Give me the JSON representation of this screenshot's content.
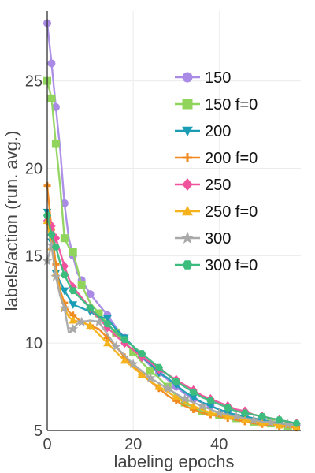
{
  "chart_data": {
    "type": "line",
    "xlabel": "labeling epochs",
    "ylabel": "labels/action (run. avg.)",
    "xlim": [
      0,
      59
    ],
    "ylim": [
      5,
      29
    ],
    "x_ticks": [
      0,
      20,
      40
    ],
    "y_ticks": [
      5,
      10,
      15,
      20,
      25
    ],
    "grid": true,
    "legend_position": "top-right",
    "series": [
      {
        "name": "150",
        "color": "#a98be6",
        "marker": "circle",
        "points": [
          [
            0,
            28.3
          ],
          [
            1,
            26.0
          ],
          [
            2,
            23.5
          ],
          [
            3,
            21.1
          ],
          [
            4,
            18.0
          ],
          [
            5,
            16.0
          ],
          [
            6,
            15.0
          ],
          [
            7,
            14.0
          ],
          [
            8,
            13.6
          ],
          [
            9,
            13.2
          ],
          [
            10,
            12.8
          ],
          [
            12,
            12.2
          ],
          [
            14,
            11.6
          ],
          [
            16,
            10.9
          ],
          [
            18,
            10.3
          ],
          [
            20,
            9.8
          ],
          [
            22,
            9.2
          ],
          [
            24,
            8.7
          ],
          [
            26,
            8.3
          ],
          [
            28,
            7.9
          ],
          [
            30,
            7.5
          ],
          [
            32,
            7.1
          ],
          [
            34,
            6.8
          ],
          [
            36,
            6.6
          ],
          [
            38,
            6.4
          ],
          [
            40,
            6.2
          ],
          [
            42,
            6.0
          ],
          [
            44,
            5.9
          ],
          [
            46,
            5.8
          ],
          [
            48,
            5.7
          ],
          [
            50,
            5.6
          ],
          [
            52,
            5.5
          ],
          [
            54,
            5.4
          ],
          [
            56,
            5.35
          ],
          [
            58,
            5.3
          ]
        ]
      },
      {
        "name": "150 f=0",
        "color": "#90d45c",
        "marker": "square",
        "points": [
          [
            0,
            25.0
          ],
          [
            1,
            24.0
          ],
          [
            2,
            21.4
          ],
          [
            3,
            19.0
          ],
          [
            4,
            16.0
          ],
          [
            5,
            15.5
          ],
          [
            6,
            15.2
          ],
          [
            7,
            14.3
          ],
          [
            8,
            13.3
          ],
          [
            10,
            12.3
          ],
          [
            12,
            11.7
          ],
          [
            14,
            11.1
          ],
          [
            16,
            10.6
          ],
          [
            18,
            10.0
          ],
          [
            20,
            9.5
          ],
          [
            22,
            8.9
          ],
          [
            24,
            8.4
          ],
          [
            26,
            8.0
          ],
          [
            28,
            7.5
          ],
          [
            30,
            7.0
          ],
          [
            32,
            6.6
          ],
          [
            34,
            6.3
          ],
          [
            36,
            6.1
          ],
          [
            38,
            6.0
          ],
          [
            40,
            5.9
          ],
          [
            42,
            5.8
          ],
          [
            44,
            5.7
          ],
          [
            46,
            5.6
          ],
          [
            48,
            5.5
          ],
          [
            50,
            5.45
          ],
          [
            52,
            5.4
          ],
          [
            54,
            5.3
          ],
          [
            56,
            5.25
          ],
          [
            58,
            5.2
          ]
        ]
      },
      {
        "name": "200",
        "color": "#1a9db4",
        "marker": "tri-down",
        "points": [
          [
            0,
            17.5
          ],
          [
            1,
            15.8
          ],
          [
            2,
            14.0
          ],
          [
            3,
            13.5
          ],
          [
            4,
            13.0
          ],
          [
            5,
            12.6
          ],
          [
            6,
            12.2
          ],
          [
            8,
            12.0
          ],
          [
            10,
            11.8
          ],
          [
            12,
            11.5
          ],
          [
            14,
            11.4
          ],
          [
            16,
            10.8
          ],
          [
            18,
            10.3
          ],
          [
            20,
            9.8
          ],
          [
            22,
            9.2
          ],
          [
            24,
            8.8
          ],
          [
            26,
            8.3
          ],
          [
            28,
            8.0
          ],
          [
            30,
            7.6
          ],
          [
            32,
            7.2
          ],
          [
            34,
            6.9
          ],
          [
            36,
            6.6
          ],
          [
            38,
            6.4
          ],
          [
            40,
            6.2
          ],
          [
            42,
            6.0
          ],
          [
            44,
            5.9
          ],
          [
            46,
            5.8
          ],
          [
            48,
            5.7
          ],
          [
            50,
            5.6
          ],
          [
            52,
            5.5
          ],
          [
            54,
            5.4
          ],
          [
            56,
            5.3
          ],
          [
            58,
            5.25
          ]
        ]
      },
      {
        "name": "200 f=0",
        "color": "#f08a1e",
        "marker": "plus",
        "points": [
          [
            0,
            19.0
          ],
          [
            1,
            16.5
          ],
          [
            2,
            14.5
          ],
          [
            3,
            13.0
          ],
          [
            4,
            12.3
          ],
          [
            5,
            11.8
          ],
          [
            6,
            11.6
          ],
          [
            8,
            11.2
          ],
          [
            10,
            11.0
          ],
          [
            12,
            10.8
          ],
          [
            14,
            10.3
          ],
          [
            16,
            9.8
          ],
          [
            18,
            9.2
          ],
          [
            20,
            8.7
          ],
          [
            22,
            8.2
          ],
          [
            24,
            7.8
          ],
          [
            26,
            7.4
          ],
          [
            28,
            7.0
          ],
          [
            30,
            6.7
          ],
          [
            32,
            6.4
          ],
          [
            34,
            6.2
          ],
          [
            36,
            6.0
          ],
          [
            38,
            5.9
          ],
          [
            40,
            5.8
          ],
          [
            42,
            5.7
          ],
          [
            44,
            5.6
          ],
          [
            46,
            5.5
          ],
          [
            48,
            5.4
          ],
          [
            50,
            5.35
          ],
          [
            52,
            5.3
          ],
          [
            54,
            5.25
          ],
          [
            56,
            5.2
          ],
          [
            58,
            5.15
          ]
        ]
      },
      {
        "name": "250",
        "color": "#f0529c",
        "marker": "diamond",
        "points": [
          [
            0,
            17.0
          ],
          [
            1,
            16.7
          ],
          [
            2,
            16.0
          ],
          [
            3,
            15.2
          ],
          [
            4,
            14.4
          ],
          [
            5,
            13.7
          ],
          [
            6,
            13.2
          ],
          [
            8,
            12.6
          ],
          [
            10,
            12.0
          ],
          [
            12,
            11.4
          ],
          [
            14,
            10.9
          ],
          [
            16,
            10.4
          ],
          [
            18,
            10.0
          ],
          [
            20,
            9.6
          ],
          [
            22,
            9.2
          ],
          [
            24,
            8.9
          ],
          [
            26,
            8.5
          ],
          [
            28,
            8.2
          ],
          [
            30,
            7.9
          ],
          [
            32,
            7.6
          ],
          [
            34,
            7.3
          ],
          [
            36,
            7.0
          ],
          [
            38,
            6.8
          ],
          [
            40,
            6.6
          ],
          [
            42,
            6.4
          ],
          [
            44,
            6.2
          ],
          [
            46,
            6.1
          ],
          [
            48,
            5.9
          ],
          [
            50,
            5.8
          ],
          [
            52,
            5.7
          ],
          [
            54,
            5.6
          ],
          [
            56,
            5.5
          ],
          [
            58,
            5.4
          ]
        ]
      },
      {
        "name": "250 f=0",
        "color": "#f5b21b",
        "marker": "tri-up",
        "points": [
          [
            0,
            17.0
          ],
          [
            1,
            15.5
          ],
          [
            2,
            14.0
          ],
          [
            3,
            12.8
          ],
          [
            4,
            12.0
          ],
          [
            5,
            11.5
          ],
          [
            6,
            11.3
          ],
          [
            8,
            11.2
          ],
          [
            10,
            11.0
          ],
          [
            12,
            10.5
          ],
          [
            14,
            10.0
          ],
          [
            16,
            9.5
          ],
          [
            18,
            9.0
          ],
          [
            20,
            8.6
          ],
          [
            22,
            8.2
          ],
          [
            24,
            7.8
          ],
          [
            26,
            7.5
          ],
          [
            28,
            7.2
          ],
          [
            30,
            6.9
          ],
          [
            32,
            6.6
          ],
          [
            34,
            6.4
          ],
          [
            36,
            6.2
          ],
          [
            38,
            6.0
          ],
          [
            40,
            5.9
          ],
          [
            42,
            5.8
          ],
          [
            44,
            5.7
          ],
          [
            46,
            5.6
          ],
          [
            48,
            5.5
          ],
          [
            50,
            5.4
          ],
          [
            52,
            5.35
          ],
          [
            54,
            5.3
          ],
          [
            56,
            5.25
          ],
          [
            58,
            5.2
          ]
        ]
      },
      {
        "name": "300",
        "color": "#a9a9a9",
        "marker": "star",
        "points": [
          [
            0,
            14.7
          ],
          [
            1,
            15.6
          ],
          [
            2,
            13.8
          ],
          [
            3,
            12.7
          ],
          [
            4,
            12.0
          ],
          [
            5,
            10.6
          ],
          [
            6,
            10.8
          ],
          [
            7,
            11.1
          ],
          [
            8,
            11.2
          ],
          [
            10,
            11.3
          ],
          [
            12,
            11.2
          ],
          [
            14,
            10.5
          ],
          [
            16,
            9.8
          ],
          [
            18,
            9.3
          ],
          [
            20,
            8.8
          ],
          [
            22,
            8.4
          ],
          [
            24,
            8.0
          ],
          [
            26,
            7.7
          ],
          [
            28,
            7.4
          ],
          [
            30,
            7.1
          ],
          [
            32,
            6.8
          ],
          [
            34,
            6.6
          ],
          [
            36,
            6.4
          ],
          [
            38,
            6.2
          ],
          [
            40,
            6.0
          ],
          [
            42,
            5.9
          ],
          [
            44,
            5.8
          ],
          [
            46,
            5.7
          ],
          [
            48,
            5.6
          ],
          [
            50,
            5.5
          ],
          [
            52,
            5.45
          ],
          [
            54,
            5.4
          ],
          [
            56,
            5.35
          ],
          [
            58,
            5.3
          ]
        ]
      },
      {
        "name": "300 f=0",
        "color": "#3dbd7d",
        "marker": "hexagon",
        "points": [
          [
            0,
            17.3
          ],
          [
            1,
            16.2
          ],
          [
            2,
            15.5
          ],
          [
            3,
            14.6
          ],
          [
            4,
            13.9
          ],
          [
            5,
            13.4
          ],
          [
            6,
            13.0
          ],
          [
            8,
            12.5
          ],
          [
            10,
            12.0
          ],
          [
            12,
            11.5
          ],
          [
            14,
            11.1
          ],
          [
            16,
            10.6
          ],
          [
            18,
            10.2
          ],
          [
            20,
            9.8
          ],
          [
            22,
            9.4
          ],
          [
            24,
            9.0
          ],
          [
            26,
            8.6
          ],
          [
            28,
            8.2
          ],
          [
            30,
            7.8
          ],
          [
            32,
            7.5
          ],
          [
            34,
            7.2
          ],
          [
            36,
            6.9
          ],
          [
            38,
            6.7
          ],
          [
            40,
            6.5
          ],
          [
            42,
            6.3
          ],
          [
            44,
            6.1
          ],
          [
            46,
            6.0
          ],
          [
            48,
            5.9
          ],
          [
            50,
            5.8
          ],
          [
            52,
            5.7
          ],
          [
            54,
            5.6
          ],
          [
            56,
            5.5
          ],
          [
            58,
            5.4
          ]
        ]
      }
    ]
  }
}
